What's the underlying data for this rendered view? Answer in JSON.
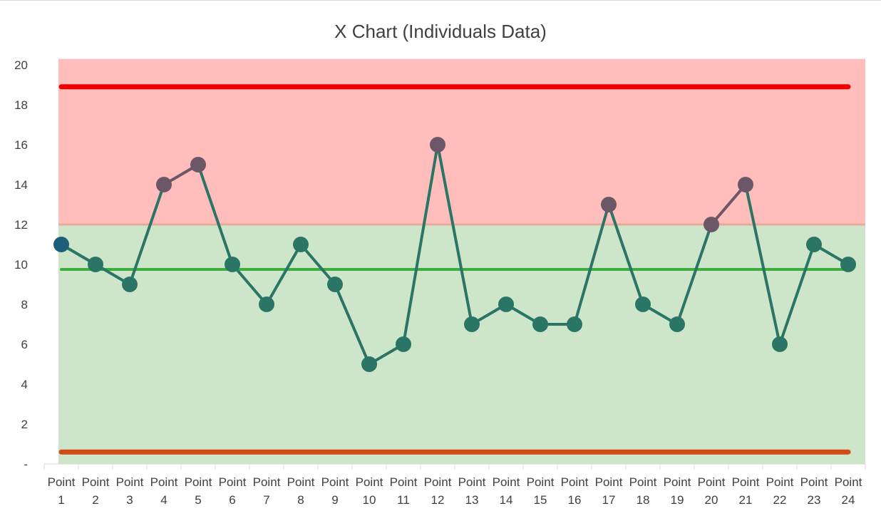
{
  "chart_data": {
    "type": "line",
    "title": "X Chart (Individuals Data)",
    "categories": [
      "Point 1",
      "Point 2",
      "Point 3",
      "Point 4",
      "Point 5",
      "Point 6",
      "Point 7",
      "Point 8",
      "Point 9",
      "Point 10",
      "Point 11",
      "Point 12",
      "Point 13",
      "Point 14",
      "Point 15",
      "Point 16",
      "Point 17",
      "Point 18",
      "Point 19",
      "Point 20",
      "Point 21",
      "Point 22",
      "Point 23",
      "Point 24"
    ],
    "series": [
      {
        "values": [
          11,
          10,
          9,
          14,
          15,
          10,
          8,
          11,
          9,
          5,
          6,
          16,
          7,
          8,
          7,
          7,
          13,
          8,
          7,
          12,
          14,
          6,
          11,
          10
        ]
      }
    ],
    "reference_lines": {
      "upper_limit": 18.9,
      "center_line": 9.75,
      "lower_limit": 0.6
    },
    "bands": [
      {
        "from": 12,
        "to": 20.3,
        "color": "#ffbdbb"
      },
      {
        "from": 0,
        "to": 12,
        "color": "#cde5c8"
      }
    ],
    "y_ticks": [
      "-",
      "2",
      "4",
      "6",
      "8",
      "10",
      "12",
      "14",
      "16",
      "18",
      "20"
    ],
    "ylim": [
      0,
      20
    ],
    "grid": false,
    "legend": "none",
    "colors": {
      "line": "#2a7566",
      "marker_in": "#2a7566",
      "marker_out": "#6c5768",
      "marker_first": "#1d5f7a",
      "upper_limit": "#f40000",
      "center_line": "#3dae3d",
      "lower_limit": "#d24b17",
      "band_edge": "#e8aa98"
    }
  }
}
